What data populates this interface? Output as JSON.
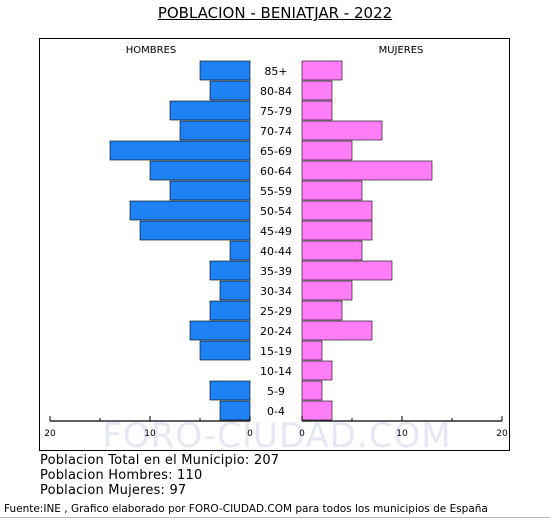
{
  "title": "POBLACION - BENIATJAR - 2022",
  "watermark": "FORO-CIUDAD.COM",
  "summary": {
    "total": "Poblacion Total en el Municipio: 207",
    "men": "Poblacion Hombres: 110",
    "women": "Poblacion Mujeres: 97"
  },
  "source": "Fuente:INE , Grafico elaborado por FORO-CIUDAD.COM para todos los municipios de España",
  "chart_data": {
    "type": "bar",
    "orientation": "horizontal-pyramid",
    "left_label": "HOMBRES",
    "right_label": "MUJERES",
    "categories": [
      "85+",
      "80-84",
      "75-79",
      "70-74",
      "65-69",
      "60-64",
      "55-59",
      "50-54",
      "45-49",
      "40-44",
      "35-39",
      "30-34",
      "25-29",
      "20-24",
      "15-19",
      "10-14",
      "5-9",
      "0-4"
    ],
    "series": [
      {
        "name": "HOMBRES",
        "color": "#1e82f5",
        "values": [
          5,
          4,
          8,
          7,
          14,
          10,
          8,
          12,
          11,
          2,
          4,
          3,
          4,
          6,
          5,
          0,
          4,
          3
        ]
      },
      {
        "name": "MUJERES",
        "color": "#ff7ef7",
        "values": [
          4,
          3,
          3,
          8,
          5,
          13,
          6,
          7,
          7,
          6,
          9,
          5,
          4,
          7,
          2,
          3,
          2,
          3
        ]
      }
    ],
    "xlim": [
      0,
      20
    ],
    "x_ticks_left": [
      "20",
      "10",
      "0"
    ],
    "x_ticks_right": [
      "0",
      "10",
      "20"
    ],
    "grid": false
  }
}
